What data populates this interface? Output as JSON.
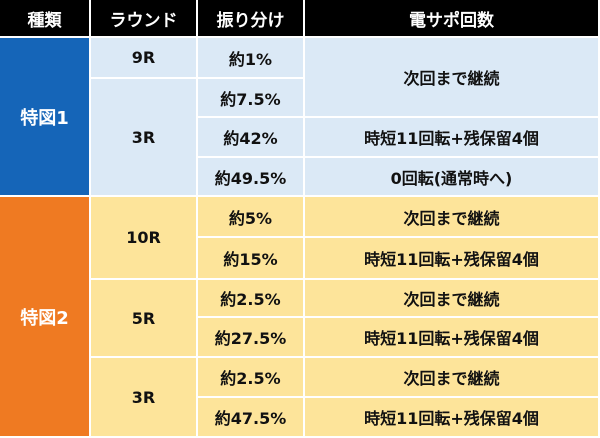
{
  "header": {
    "col1": "種類",
    "col2": "ラウンド",
    "col3": "振り分け",
    "col4": "電サポ回数"
  },
  "colors": {
    "header_bg": "#000000",
    "tokuzu1_bg": "#1565b8",
    "tokuzu2_bg": "#ef7a22",
    "tokuzu1_rows_bg": "#dbe9f6",
    "tokuzu2_rows_bg": "#fde49a"
  },
  "tokuzu1": {
    "label": "特図1",
    "groups": [
      {
        "round": "9R",
        "rows": [
          {
            "ratio": "約1%"
          }
        ]
      },
      {
        "round": "3R",
        "rows": [
          {
            "ratio": "約7.5%"
          },
          {
            "ratio": "約42%"
          },
          {
            "ratio": "約49.5%"
          }
        ]
      }
    ],
    "support": [
      "次回まで継続",
      "時短11回転+残保留4個",
      "0回転(通常時へ)"
    ]
  },
  "tokuzu2": {
    "label": "特図2",
    "groups": [
      {
        "round": "10R",
        "rows": [
          {
            "ratio": "約5%",
            "support": "次回まで継続"
          },
          {
            "ratio": "約15%",
            "support": "時短11回転+残保留4個"
          }
        ]
      },
      {
        "round": "5R",
        "rows": [
          {
            "ratio": "約2.5%",
            "support": "次回まで継続"
          },
          {
            "ratio": "約27.5%",
            "support": "時短11回転+残保留4個"
          }
        ]
      },
      {
        "round": "3R",
        "rows": [
          {
            "ratio": "約2.5%",
            "support": "次回まで継続"
          },
          {
            "ratio": "約47.5%",
            "support": "時短11回転+残保留4個"
          }
        ]
      }
    ]
  }
}
